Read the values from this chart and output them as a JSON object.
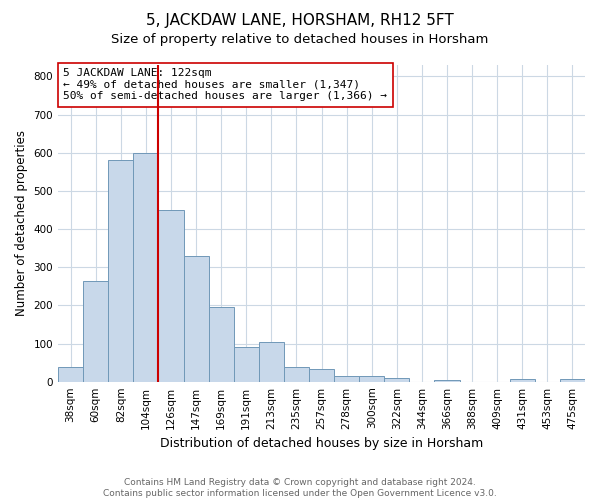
{
  "title": "5, JACKDAW LANE, HORSHAM, RH12 5FT",
  "subtitle": "Size of property relative to detached houses in Horsham",
  "xlabel": "Distribution of detached houses by size in Horsham",
  "ylabel": "Number of detached properties",
  "footnote": "Contains HM Land Registry data © Crown copyright and database right 2024.\nContains public sector information licensed under the Open Government Licence v3.0.",
  "bar_labels": [
    "38sqm",
    "60sqm",
    "82sqm",
    "104sqm",
    "126sqm",
    "147sqm",
    "169sqm",
    "191sqm",
    "213sqm",
    "235sqm",
    "257sqm",
    "278sqm",
    "300sqm",
    "322sqm",
    "344sqm",
    "366sqm",
    "388sqm",
    "409sqm",
    "431sqm",
    "453sqm",
    "475sqm"
  ],
  "bar_values": [
    38,
    265,
    580,
    600,
    450,
    330,
    195,
    90,
    103,
    38,
    32,
    15,
    15,
    10,
    0,
    5,
    0,
    0,
    7,
    0,
    7
  ],
  "bar_color": "#c8d8ea",
  "bar_edge_color": "#7098b8",
  "red_line_x": 3.5,
  "red_line_color": "#cc0000",
  "annotation_text": "5 JACKDAW LANE: 122sqm\n← 49% of detached houses are smaller (1,347)\n50% of semi-detached houses are larger (1,366) →",
  "annotation_box_color": "#ffffff",
  "annotation_box_edge_color": "#cc0000",
  "ylim": [
    0,
    830
  ],
  "yticks": [
    0,
    100,
    200,
    300,
    400,
    500,
    600,
    700,
    800
  ],
  "title_fontsize": 11,
  "subtitle_fontsize": 9.5,
  "xlabel_fontsize": 9,
  "ylabel_fontsize": 8.5,
  "tick_fontsize": 7.5,
  "annotation_fontsize": 8,
  "footnote_fontsize": 6.5,
  "background_color": "#ffffff",
  "grid_color": "#ccd8e4"
}
